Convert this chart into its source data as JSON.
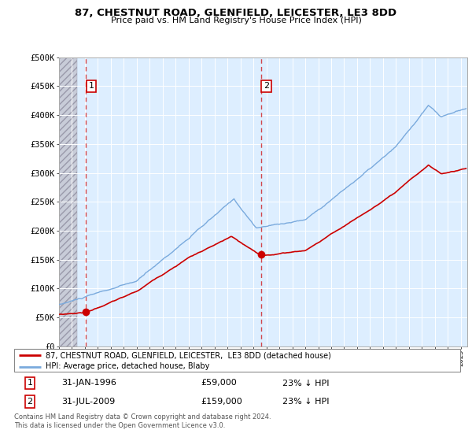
{
  "title": "87, CHESTNUT ROAD, GLENFIELD, LEICESTER, LE3 8DD",
  "subtitle": "Price paid vs. HM Land Registry's House Price Index (HPI)",
  "ylim": [
    0,
    500000
  ],
  "yticks": [
    0,
    50000,
    100000,
    150000,
    200000,
    250000,
    300000,
    350000,
    400000,
    450000,
    500000
  ],
  "ytick_labels": [
    "£0",
    "£50K",
    "£100K",
    "£150K",
    "£200K",
    "£250K",
    "£300K",
    "£350K",
    "£400K",
    "£450K",
    "£500K"
  ],
  "xlim_start": 1994.0,
  "xlim_end": 2025.5,
  "hatch_end": 1995.4,
  "price_paid_color": "#cc0000",
  "hpi_color": "#7aaadd",
  "sale1_x": 1996.08,
  "sale1_y": 59000,
  "sale2_x": 2009.58,
  "sale2_y": 159000,
  "legend_line1": "87, CHESTNUT ROAD, GLENFIELD, LEICESTER,  LE3 8DD (detached house)",
  "legend_line2": "HPI: Average price, detached house, Blaby",
  "footnote": "Contains HM Land Registry data © Crown copyright and database right 2024.\nThis data is licensed under the Open Government Licence v3.0.",
  "background_plot": "#ddeeff",
  "hatch_bg": "#c8ccd8",
  "grid_color": "#ffffff"
}
